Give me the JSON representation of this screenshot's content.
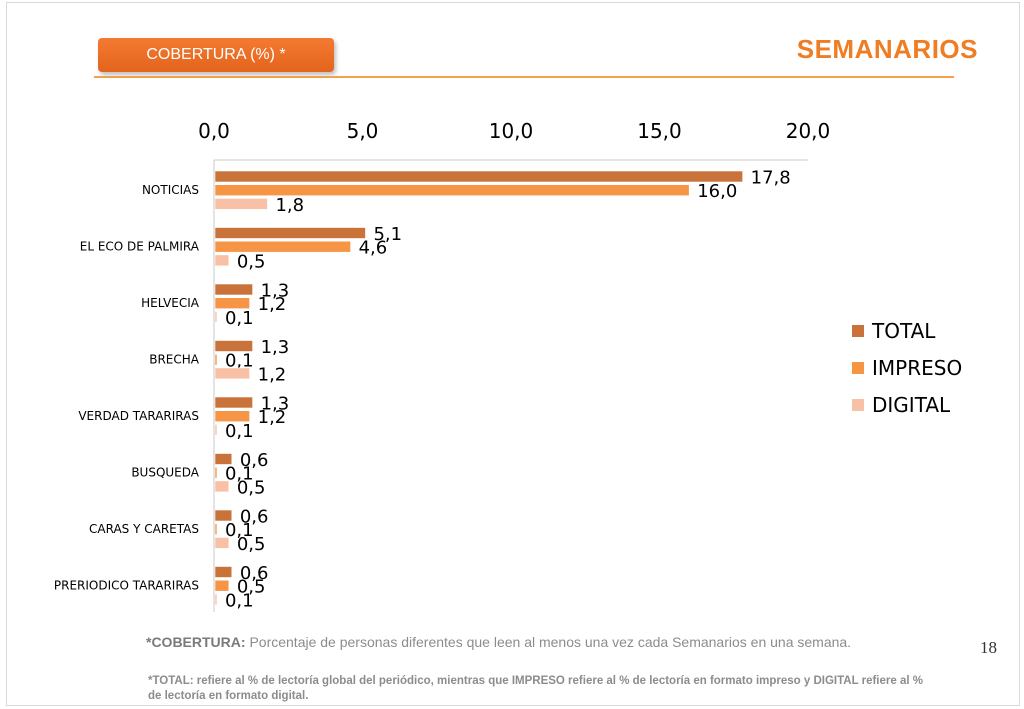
{
  "header": {
    "badge_label": "COBERTURA (%) *",
    "title": "SEMANARIOS"
  },
  "chart_data": {
    "type": "bar",
    "orientation": "horizontal",
    "categories": [
      "NOTICIAS",
      "EL ECO DE PALMIRA",
      "HELVECIA",
      "BRECHA",
      "VERDAD TARARIRAS",
      "BUSQUEDA",
      "CARAS Y CARETAS",
      "PRERIODICO TARARIRAS"
    ],
    "series": [
      {
        "name": "TOTAL",
        "color": "#c9733a",
        "values": [
          17.8,
          5.1,
          1.3,
          1.3,
          1.3,
          0.6,
          0.6,
          0.6
        ],
        "labels": [
          "17,8",
          "5,1",
          "1,3",
          "1,3",
          "1,3",
          "0,6",
          "0,6",
          "0,6"
        ]
      },
      {
        "name": "IMPRESO",
        "color": "#f79546",
        "values": [
          16.0,
          4.6,
          1.2,
          0.1,
          1.2,
          0.1,
          0.1,
          0.5
        ],
        "labels": [
          "16,0",
          "4,6",
          "1,2",
          "0,1",
          "1,2",
          "0,1",
          "0,1",
          "0,5"
        ]
      },
      {
        "name": "DIGITAL",
        "color": "#f8c0a4",
        "values": [
          1.8,
          0.5,
          0.1,
          1.2,
          0.1,
          0.5,
          0.5,
          0.1
        ],
        "labels": [
          "1,8",
          "0,5",
          "0,1",
          "1,2",
          "0,1",
          "0,5",
          "0,5",
          "0,1"
        ]
      }
    ],
    "xlim": [
      0,
      20
    ],
    "x_ticks": [
      0,
      5,
      10,
      15,
      20
    ],
    "x_tick_labels": [
      "0,0",
      "5,0",
      "10,0",
      "15,0",
      "20,0"
    ],
    "axis_position": "top",
    "grid": false,
    "legend": "right"
  },
  "footer": {
    "note_label": "*COBERTURA:",
    "note_text": "Porcentaje de personas diferentes que leen al menos una vez cada Semanarios en una semana.",
    "note2": "*TOTAL: refiere al % de lectoría global del periódico, mientras que IMPRESO refiere al % de lectoría en formato impreso y DIGITAL refiere al % de lectoría en formato digital.",
    "page_number": "18"
  }
}
